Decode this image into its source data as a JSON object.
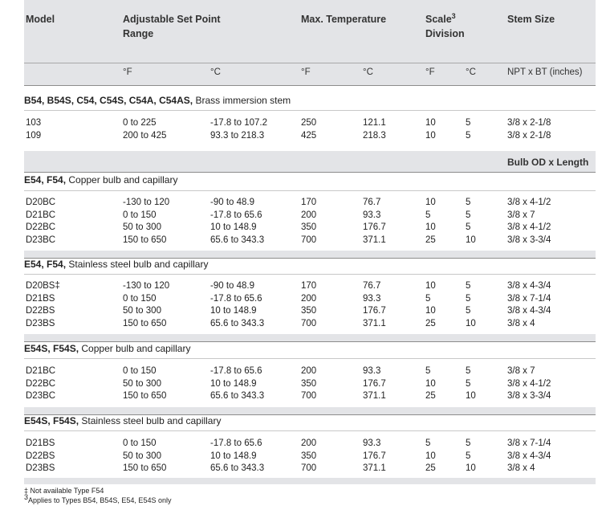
{
  "headers": {
    "model": "Model",
    "range_line1": "Adjustable Set Point",
    "range_line2": "Range",
    "max_temp": "Max. Temperature",
    "scale_line1": "Scale",
    "scale_sup": "3",
    "scale_line2": "Division",
    "stem": "Stem Size"
  },
  "units": {
    "range_f": "°F",
    "range_c": "°C",
    "max_f": "°F",
    "max_c": "°C",
    "scale_f": "°F",
    "scale_c": "°C",
    "stem": "NPT x BT (inches)"
  },
  "bulb_header": "Bulb OD x Length",
  "sections": [
    {
      "models_bold": "B54, B54S, C54, C54S, C54A, C54AS,",
      "desc": " Brass immersion stem",
      "rows": [
        [
          "103",
          "0 to 225",
          "-17.8 to 107.2",
          "250",
          "121.1",
          "10",
          "5",
          "3/8 x 2-1/8"
        ],
        [
          "109",
          "200 to 425",
          "93.3 to 218.3",
          "425",
          "218.3",
          "10",
          "5",
          "3/8 x 2-1/8"
        ]
      ]
    },
    {
      "models_bold": "E54, F54,",
      "desc": " Copper bulb and capillary",
      "rows": [
        [
          "D20BC",
          "-130 to 120",
          "-90 to 48.9",
          "170",
          "76.7",
          "10",
          "5",
          "3/8 x 4-1/2"
        ],
        [
          "D21BC",
          "0 to 150",
          "-17.8 to 65.6",
          "200",
          "93.3",
          "5",
          "5",
          "3/8 x 7"
        ],
        [
          "D22BC",
          "50 to 300",
          "10 to 148.9",
          "350",
          "176.7",
          "10",
          "5",
          "3/8 x 4-1/2"
        ],
        [
          "D23BC",
          "150 to 650",
          "65.6 to 343.3",
          "700",
          "371.1",
          "25",
          "10",
          "3/8 x 3-3/4"
        ]
      ]
    },
    {
      "models_bold": "E54, F54,",
      "desc": " Stainless steel bulb and capillary",
      "rows": [
        [
          "D20BS‡",
          "-130 to 120",
          "-90 to 48.9",
          "170",
          "76.7",
          "10",
          "5",
          "3/8 x 4-3/4"
        ],
        [
          "D21BS",
          "0 to 150",
          "-17.8 to 65.6",
          "200",
          "93.3",
          "5",
          "5",
          "3/8 x 7-1/4"
        ],
        [
          "D22BS",
          "50 to 300",
          "10 to 148.9",
          "350",
          "176.7",
          "10",
          "5",
          "3/8 x 4-3/4"
        ],
        [
          "D23BS",
          "150 to 650",
          "65.6 to 343.3",
          "700",
          "371.1",
          "25",
          "10",
          "3/8 x 4"
        ]
      ]
    },
    {
      "models_bold": "E54S, F54S,",
      "desc": " Copper bulb and capillary",
      "rows": [
        [
          "D21BC",
          "0 to 150",
          "-17.8 to 65.6",
          "200",
          "93.3",
          "5",
          "5",
          "3/8 x 7"
        ],
        [
          "D22BC",
          "50 to 300",
          "10 to 148.9",
          "350",
          "176.7",
          "10",
          "5",
          "3/8 x 4-1/2"
        ],
        [
          "D23BC",
          "150 to 650",
          "65.6 to 343.3",
          "700",
          "371.1",
          "25",
          "10",
          "3/8 x 3-3/4"
        ]
      ]
    },
    {
      "models_bold": "E54S, F54S,",
      "desc": " Stainless steel bulb and capillary",
      "rows": [
        [
          "D21BS",
          "0 to 150",
          "-17.8 to 65.6",
          "200",
          "93.3",
          "5",
          "5",
          "3/8 x 7-1/4"
        ],
        [
          "D22BS",
          "50 to 300",
          "10 to 148.9",
          "350",
          "176.7",
          "10",
          "5",
          "3/8 x 4-3/4"
        ],
        [
          "D23BS",
          "150 to 650",
          "65.6 to 343.3",
          "700",
          "371.1",
          "25",
          "10",
          "3/8 x 4"
        ]
      ]
    }
  ],
  "footnotes": {
    "note1": "‡ Not available Type F54",
    "note2_sup": "3",
    "note2": "Applies to Types B54, B54S, E54, E54S only"
  }
}
